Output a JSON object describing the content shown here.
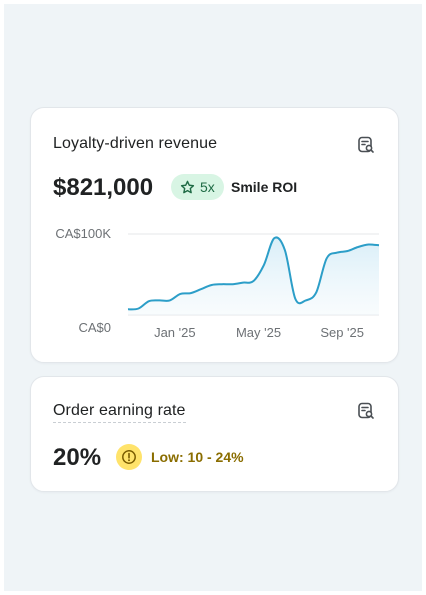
{
  "revenue_card": {
    "title": "Loyalty-driven revenue",
    "icon": "report-search-icon",
    "value": "$821,000",
    "badge": {
      "icon": "star-icon",
      "label": "5x"
    },
    "badge_suffix": "Smile ROI"
  },
  "rate_card": {
    "title": "Order earning rate",
    "icon": "report-search-icon",
    "value": "20%",
    "badge": {
      "icon": "warning-icon",
      "label": "Low: 10 - 24%"
    }
  },
  "colors": {
    "line": "#2c9ec8",
    "area_top": "#d4ecf7",
    "green_badge": "#d8f5e4",
    "warning": "#ffe36b"
  },
  "chart_data": {
    "type": "area",
    "y_tick_labels": [
      "CA$100K",
      "CA$0"
    ],
    "ylim": [
      0,
      100000
    ],
    "x_tick_labels": [
      "Jan '25",
      "May '25",
      "Sep '25"
    ],
    "x_tick_positions": [
      2,
      6,
      10
    ],
    "x": [
      0,
      0.5,
      1,
      1.5,
      2,
      2.5,
      3,
      3.5,
      4,
      4.5,
      5,
      5.5,
      6,
      6.5,
      7,
      7.5,
      8,
      8.5,
      9,
      9.5,
      10,
      10.5,
      11,
      11.5,
      12
    ],
    "values": [
      7000,
      8000,
      17000,
      18000,
      18000,
      26000,
      27000,
      32000,
      37000,
      38000,
      38000,
      40000,
      42000,
      62000,
      95000,
      80000,
      20000,
      18000,
      28000,
      70000,
      77000,
      79000,
      84000,
      87000,
      86000
    ],
    "grid": true
  }
}
